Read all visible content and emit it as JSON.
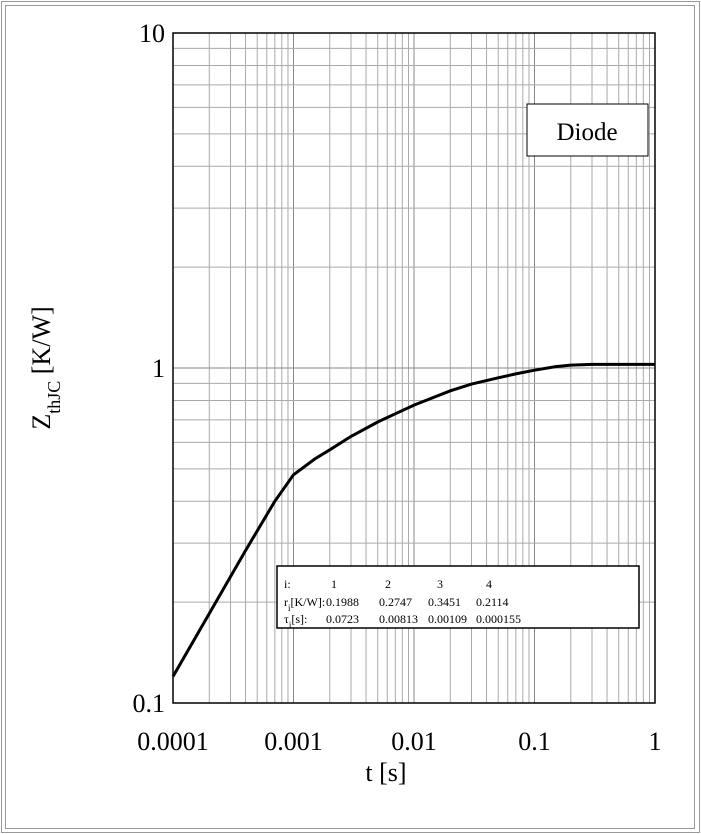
{
  "chart_data": {
    "type": "line",
    "x_scale": "log",
    "y_scale": "log",
    "xlim": [
      0.0001,
      1
    ],
    "ylim": [
      0.1,
      10
    ],
    "grid": true,
    "xlabel": "t [s]",
    "ylabel": {
      "main": "Z",
      "sub": "thJC",
      "unit": " [K/W]"
    },
    "x_ticks": [
      "0.0001",
      "0.001",
      "0.01",
      "0.1",
      "1"
    ],
    "y_ticks": [
      "0.1",
      "1",
      "10"
    ],
    "series": [
      {
        "name": "Diode",
        "x": [
          0.0001,
          0.0002,
          0.0004,
          0.0007,
          0.001,
          0.0015,
          0.002,
          0.003,
          0.005,
          0.007,
          0.01,
          0.02,
          0.03,
          0.05,
          0.07,
          0.1,
          0.15,
          0.2,
          0.3,
          0.5,
          1
        ],
        "y": [
          0.12,
          0.185,
          0.285,
          0.4,
          0.48,
          0.535,
          0.57,
          0.625,
          0.69,
          0.73,
          0.775,
          0.855,
          0.895,
          0.935,
          0.96,
          0.985,
          1.01,
          1.02,
          1.025,
          1.025,
          1.025
        ]
      }
    ],
    "annotation": {
      "text": "Diode",
      "placement": "top-right"
    },
    "parameter_table": {
      "placement": "bottom-right",
      "rows": [
        {
          "label_main": "i:",
          "label_sub": "",
          "label_tail": "",
          "values": [
            "1",
            "2",
            "3",
            "4"
          ]
        },
        {
          "label_main": "r",
          "label_sub": "i",
          "label_tail": "[K/W]:",
          "values": [
            "0.1988",
            "0.2747",
            "0.3451",
            "0.2114"
          ]
        },
        {
          "label_main": "τ",
          "label_sub": "i",
          "label_tail": "[s]:",
          "values": [
            "0.0723",
            "0.00813",
            "0.00109",
            "0.000155"
          ]
        }
      ]
    }
  },
  "colors": {
    "line": "#000000",
    "grid": "#aaaaaa",
    "frame": "#888888"
  }
}
